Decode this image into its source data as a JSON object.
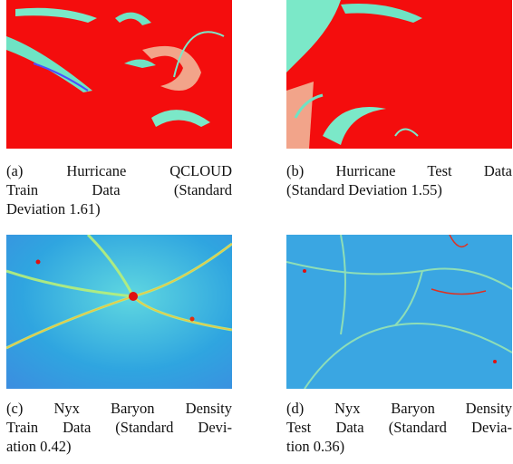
{
  "figures": [
    {
      "label": "(a)",
      "lines": [
        "Hurricane QCLOUD",
        "Train Data (Standard",
        "Deviation 1.61)"
      ]
    },
    {
      "label": "(b)",
      "lines": [
        "Hurricane Test Data",
        "(Standard Deviation 1.55)"
      ]
    },
    {
      "label": "(c)",
      "lines": [
        "Nyx Baryon Density",
        "Train Data (Standard Devi-",
        "ation 0.42)"
      ]
    },
    {
      "label": "(d)",
      "lines": [
        "Nyx Baryon Density",
        "Test Data (Standard Devia-",
        "tion 0.36)"
      ]
    }
  ]
}
